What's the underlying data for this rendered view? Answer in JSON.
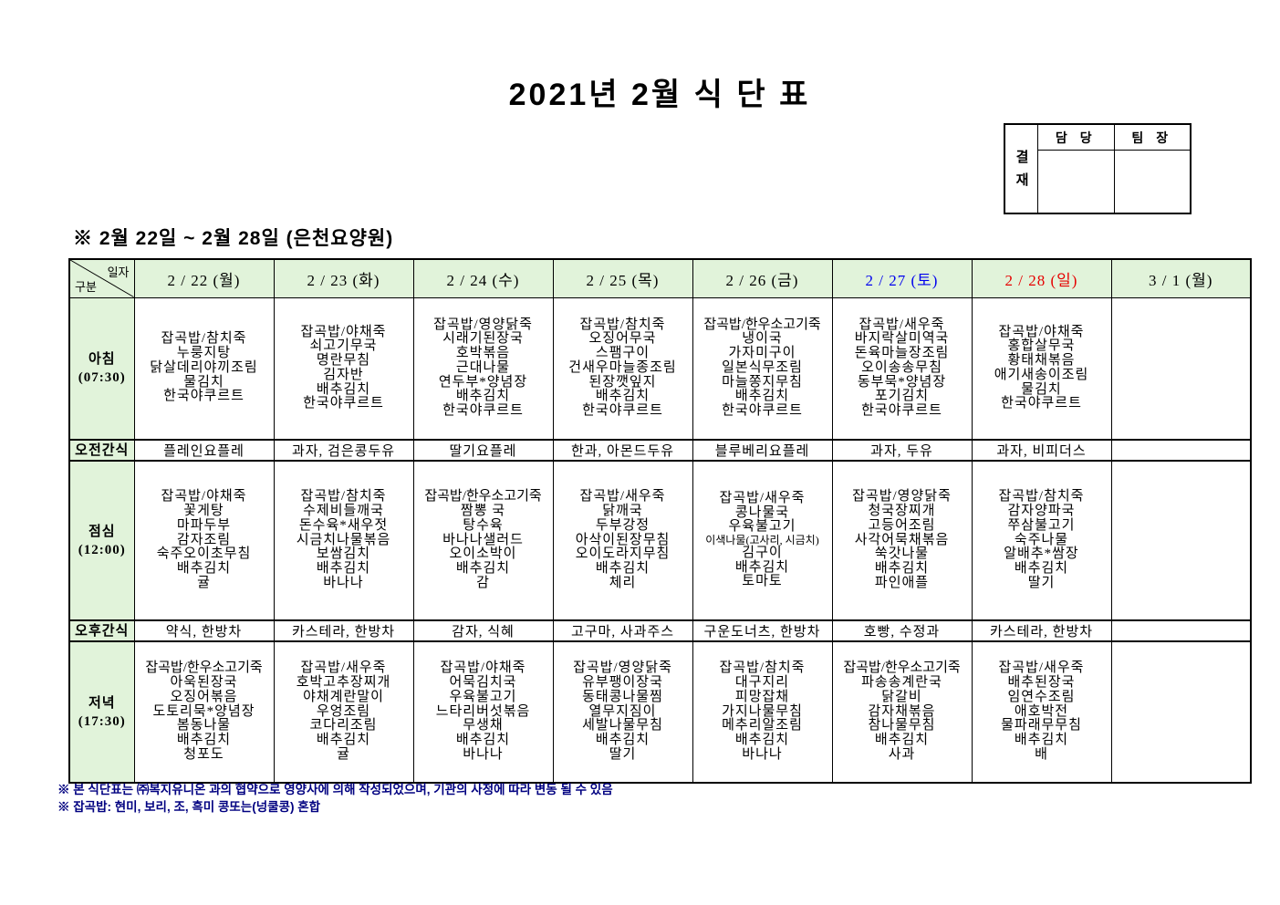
{
  "title": "2021년 2월 식 단 표",
  "subtitle": "※ 2월 22일 ~ 2월 28일 (은천요양원)",
  "approval": {
    "left_label": "결재",
    "columns": [
      "담 당",
      "팀 장"
    ]
  },
  "colors": {
    "header_bg": "#E1F3DA",
    "saturday_text": "#0000EE",
    "sunday_text": "#E60000",
    "weekday_text": "#000000",
    "note_text": "#000080"
  },
  "table": {
    "corner": {
      "top": "일자",
      "bottom": "구분"
    },
    "columns": [
      {
        "label": "2 / 22 (월)",
        "color": "#000000"
      },
      {
        "label": "2 / 23 (화)",
        "color": "#000000"
      },
      {
        "label": "2 / 24 (수)",
        "color": "#000000"
      },
      {
        "label": "2 / 25 (목)",
        "color": "#000000"
      },
      {
        "label": "2 / 26 (금)",
        "color": "#000000"
      },
      {
        "label": "2 / 27 (토)",
        "color": "#0000EE"
      },
      {
        "label": "2 / 28 (일)",
        "color": "#E60000"
      },
      {
        "label": "3 / 1 (월)",
        "color": "#000000"
      }
    ],
    "rows": [
      {
        "kind": "breakfast",
        "type": "meal",
        "label": "아침",
        "time": "(07:30)",
        "cells": [
          [
            "잡곡밥/참치죽",
            "누룽지탕",
            "닭살데리야끼조림",
            "물김치",
            "한국야쿠르트"
          ],
          [
            "잡곡밥/야채죽",
            "쇠고기무국",
            "명란무침",
            "김자반",
            "배추김치",
            "한국야쿠르트"
          ],
          [
            "잡곡밥/영양닭죽",
            "시래기된장국",
            "호박볶음",
            "근대나물",
            "연두부*양념장",
            "배추김치",
            "한국야쿠르트"
          ],
          [
            "잡곡밥/참치죽",
            "오징어무국",
            "스팸구이",
            "건새우마늘종조림",
            "된장깻잎지",
            "배추김치",
            "한국야쿠르트"
          ],
          [
            "잡곡밥/한우소고기죽",
            "냉이국",
            "가자미구이",
            "일본식무조림",
            "마늘쫑지무침",
            "배추김치",
            "한국야쿠르트"
          ],
          [
            "잡곡밥/새우죽",
            "바지락살미역국",
            "돈육마늘장조림",
            "오이송송무침",
            "동부묵*양념장",
            "포기김치",
            "한국야쿠르트"
          ],
          [
            "잡곡밥/야채죽",
            "홍합살무국",
            "황태채볶음",
            "애기새송이조림",
            "물김치",
            "한국야쿠르트"
          ],
          []
        ]
      },
      {
        "kind": "am-snack",
        "type": "snack",
        "label": "오전간식",
        "cells": [
          "플레인요플레",
          "과자, 검은콩두유",
          "딸기요플레",
          "한과, 아몬드두유",
          "블루베리요플레",
          "과자, 두유",
          "과자, 비피더스",
          ""
        ]
      },
      {
        "kind": "lunch",
        "type": "meal",
        "label": "점심",
        "time": "(12:00)",
        "cells": [
          [
            "잡곡밥/야채죽",
            "꽃게탕",
            "마파두부",
            "감자조림",
            "숙주오이초무침",
            "배추김치",
            "귤"
          ],
          [
            "잡곡밥/참치죽",
            "수제비들깨국",
            "돈수육*새우젓",
            "시금치나물볶음",
            "보쌈김치",
            "배추김치",
            "바나나"
          ],
          [
            "잡곡밥/한우소고기죽",
            "짬뽕 국",
            "탕수육",
            "바나나샐러드",
            "오이소박이",
            "배추김치",
            "감"
          ],
          [
            "잡곡밥/새우죽",
            "닭깨국",
            "두부강정",
            "아삭이된장무침",
            "오이도라지무침",
            "배추김치",
            "체리"
          ],
          [
            "잡곡밥/새우죽",
            "콩나물국",
            "우육불고기",
            "이색나물(고사리, 시금치)",
            "김구이",
            "배추김치",
            "토마토"
          ],
          [
            "잡곡밥/영양닭죽",
            "청국장찌개",
            "고등어조림",
            "사각어묵채볶음",
            "쑥갓나물",
            "배추김치",
            "파인애플"
          ],
          [
            "잡곡밥/참치죽",
            "감자양파국",
            "쭈삼불고기",
            "숙주나물",
            "알배추*쌈장",
            "배추김치",
            "딸기"
          ],
          []
        ]
      },
      {
        "kind": "pm-snack",
        "type": "snack",
        "label": "오후간식",
        "cells": [
          "약식, 한방차",
          "카스테라, 한방차",
          "감자, 식혜",
          "고구마, 사과주스",
          "구운도너츠, 한방차",
          "호빵, 수정과",
          "카스테라, 한방차",
          ""
        ]
      },
      {
        "kind": "dinner",
        "type": "meal",
        "label": "저녁",
        "time": "(17:30)",
        "cells": [
          [
            "잡곡밥/한우소고기죽",
            "아욱된장국",
            "오징어볶음",
            "도토리묵*양념장",
            "봄동나물",
            "배추김치",
            "청포도"
          ],
          [
            "잡곡밥/새우죽",
            "호박고추장찌개",
            "야채계란말이",
            "우엉조림",
            "코다리조림",
            "배추김치",
            "귤"
          ],
          [
            "잡곡밥/야채죽",
            "어묵김치국",
            "우육불고기",
            "느타리버섯볶음",
            "무생채",
            "배추김치",
            "바나나"
          ],
          [
            "잡곡밥/영양닭죽",
            "유부팽이장국",
            "동태콩나물찜",
            "열무지짐이",
            "세발나물무침",
            "배추김치",
            "딸기"
          ],
          [
            "잡곡밥/참치죽",
            "대구지리",
            "피망잡채",
            "가지나물무침",
            "메추리알조림",
            "배추김치",
            "바나나"
          ],
          [
            "잡곡밥/한우소고기죽",
            "파송송계란국",
            "닭갈비",
            "감자채볶음",
            "참나물무침",
            "배추김치",
            "사과"
          ],
          [
            "잡곡밥/새우죽",
            "배추된장국",
            "임연수조림",
            "애호박전",
            "물파래무무침",
            "배추김치",
            "배"
          ],
          []
        ]
      }
    ]
  },
  "notes": [
    "※ 본 식단표는 ㈜복지유니온 과의 협약으로 영양사에 의해 작성되었으며, 기관의 사정에 따라 변동 될 수 있음",
    "※ 잡곡밥: 현미, 보리, 조, 흑미 콩또는(넝쿨콩) 혼합"
  ]
}
